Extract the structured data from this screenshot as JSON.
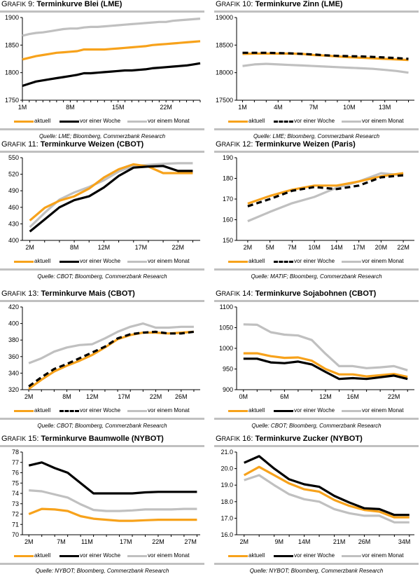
{
  "legend_labels": [
    "aktuell",
    "vor einer Woche",
    "vor einem Monat"
  ],
  "series_colors": {
    "aktuell": "#F7A21B",
    "vor einer Woche": "#000000",
    "vor einem Monat": "#C0C0C0"
  },
  "title_prefix_cap": "G",
  "title_prefix_rest": "RAFIK",
  "chart_data": [
    {
      "id": "g9",
      "number": "9",
      "title": "Terminkurve Blei (LME)",
      "type": "line",
      "xlabel": "",
      "ylabel": "",
      "ylim": [
        1750,
        1900
      ],
      "yticks": [
        1750,
        1800,
        1850,
        1900
      ],
      "x": [
        1,
        2,
        3,
        4,
        5,
        6,
        7,
        8,
        9,
        10,
        11,
        12,
        13,
        14,
        15,
        16,
        17,
        18,
        19,
        20,
        21,
        22,
        23,
        24,
        25,
        26,
        27
      ],
      "xticks": [
        {
          "x": 1,
          "label": "1M"
        },
        {
          "x": 8,
          "label": "8M"
        },
        {
          "x": 15,
          "label": "15M"
        },
        {
          "x": 22,
          "label": "22M"
        }
      ],
      "xlim": [
        1,
        27
      ],
      "dashed_week": false,
      "series": [
        {
          "name": "aktuell",
          "values": [
            1824,
            1827,
            1830,
            1832,
            1834,
            1836,
            1837,
            1838,
            1839,
            1842,
            1842,
            1842,
            1842,
            1843,
            1844,
            1845,
            1846,
            1847,
            1848,
            1850,
            1851,
            1852,
            1853,
            1854,
            1855,
            1856,
            1857
          ]
        },
        {
          "name": "vor einer Woche",
          "values": [
            1776,
            1780,
            1784,
            1786,
            1788,
            1790,
            1792,
            1794,
            1796,
            1799,
            1799,
            1800,
            1801,
            1802,
            1803,
            1804,
            1804,
            1805,
            1806,
            1808,
            1809,
            1810,
            1811,
            1812,
            1813,
            1815,
            1817
          ]
        },
        {
          "name": "vor einem Monat",
          "values": [
            1867,
            1870,
            1872,
            1873,
            1875,
            1877,
            1879,
            1880,
            1880,
            1882,
            1883,
            1883,
            1884,
            1885,
            1886,
            1887,
            1888,
            1889,
            1890,
            1891,
            1892,
            1892,
            1894,
            1895,
            1896,
            1897,
            1898
          ]
        }
      ],
      "source": "Quelle: LME; Bloomberg, Commerzbank Research",
      "grid": false,
      "legend_position": "bottom"
    },
    {
      "id": "g10",
      "number": "10",
      "title": "Terminkurve Zinn (LME)",
      "type": "line",
      "xlabel": "",
      "ylabel": "",
      "ylim": [
        17500,
        19000
      ],
      "yticks": [
        17500,
        18000,
        18500,
        19000
      ],
      "x": [
        1,
        2,
        3,
        4,
        5,
        6,
        7,
        8,
        9,
        10,
        11,
        12,
        13,
        14,
        15
      ],
      "xticks": [
        {
          "x": 1,
          "label": "1M"
        },
        {
          "x": 4,
          "label": "4M"
        },
        {
          "x": 7,
          "label": "7M"
        },
        {
          "x": 10,
          "label": "10M"
        },
        {
          "x": 13,
          "label": "13M"
        }
      ],
      "xlim": [
        0.5,
        15.5
      ],
      "dashed_week": true,
      "series": [
        {
          "name": "aktuell",
          "values": [
            18340,
            18345,
            18345,
            18345,
            18345,
            18340,
            18320,
            18310,
            18295,
            18280,
            18270,
            18260,
            18250,
            18240,
            18230
          ]
        },
        {
          "name": "vor einer Woche",
          "values": [
            18360,
            18360,
            18360,
            18355,
            18350,
            18340,
            18330,
            18315,
            18305,
            18300,
            18295,
            18285,
            18275,
            18265,
            18250
          ]
        },
        {
          "name": "vor einem Monat",
          "values": [
            18120,
            18150,
            18160,
            18150,
            18140,
            18130,
            18120,
            18110,
            18100,
            18090,
            18080,
            18070,
            18050,
            18030,
            18000
          ]
        }
      ],
      "source": "Quelle: LME; Bloomberg, Commerzbank Research",
      "grid": false,
      "legend_position": "bottom"
    },
    {
      "id": "g11",
      "number": "11",
      "title": "Terminkurve Weizen (CBOT)",
      "type": "line",
      "xlabel": "",
      "ylabel": "",
      "ylim": [
        400,
        550
      ],
      "yticks": [
        400,
        430,
        460,
        490,
        520,
        550
      ],
      "x": [
        2,
        4,
        6,
        8,
        10,
        12,
        14,
        16,
        18,
        20,
        22,
        24
      ],
      "xticks": [
        {
          "x": 2,
          "label": "2M"
        },
        {
          "x": 8,
          "label": "8M"
        },
        {
          "x": 12,
          "label": "12M"
        },
        {
          "x": 17,
          "label": "17M"
        },
        {
          "x": 22,
          "label": "22M"
        }
      ],
      "xlim": [
        1,
        25
      ],
      "dashed_week": false,
      "series": [
        {
          "name": "aktuell",
          "values": [
            436,
            459,
            472,
            480,
            494,
            514,
            529,
            538,
            534,
            522,
            522,
            522
          ]
        },
        {
          "name": "vor einer Woche",
          "values": [
            416,
            438,
            460,
            473,
            480,
            496,
            517,
            532,
            534,
            535,
            526,
            526
          ]
        },
        {
          "name": "vor einem Monat",
          "values": [
            424,
            450,
            474,
            487,
            497,
            509,
            525,
            535,
            537,
            539,
            540,
            540
          ]
        }
      ],
      "source": "Quelle: CBOT; Bloomberg, Commerzbank Research",
      "grid": false,
      "legend_position": "bottom"
    },
    {
      "id": "g12",
      "number": "12",
      "title": "Terminkurve Weizen (Paris)",
      "type": "line",
      "xlabel": "",
      "ylabel": "",
      "ylim": [
        150,
        190
      ],
      "yticks": [
        150,
        160,
        170,
        180,
        190
      ],
      "x": [
        1,
        2,
        3,
        4,
        5,
        6,
        7,
        8
      ],
      "xticks": [
        {
          "x": 1,
          "label": "2M"
        },
        {
          "x": 2,
          "label": "5M"
        },
        {
          "x": 3,
          "label": "7M"
        },
        {
          "x": 4,
          "label": "10M"
        },
        {
          "x": 5,
          "label": "14M"
        },
        {
          "x": 6,
          "label": "17M"
        },
        {
          "x": 7,
          "label": "20M"
        },
        {
          "x": 8,
          "label": "22M"
        }
      ],
      "xlim": [
        0.5,
        8.5
      ],
      "dashed_week": true,
      "series": [
        {
          "name": "aktuell",
          "values": [
            167.8,
            171.5,
            174.5,
            176.5,
            176.5,
            178.5,
            181.0,
            182.5
          ]
        },
        {
          "name": "vor einer Woche",
          "values": [
            166.5,
            170.0,
            174.0,
            175.8,
            174.8,
            176.5,
            180.5,
            181.5
          ]
        },
        {
          "name": "vor einem Monat",
          "values": [
            159.3,
            163.8,
            168.0,
            171.0,
            175.5,
            178.5,
            182.5,
            181.5
          ]
        }
      ],
      "source": "Quelle: MATIF; Bloomberg, Commerzbank Research",
      "grid": false,
      "legend_position": "bottom"
    },
    {
      "id": "g13",
      "number": "13",
      "title": "Terminkurve Mais (CBOT)",
      "type": "line",
      "xlabel": "",
      "ylabel": "",
      "ylim": [
        320,
        420
      ],
      "yticks": [
        320,
        340,
        360,
        380,
        400,
        420
      ],
      "x": [
        2,
        4,
        6,
        8,
        10,
        12,
        14,
        16,
        18,
        20,
        22,
        24,
        26,
        28
      ],
      "xticks": [
        {
          "x": 2,
          "label": "2M"
        },
        {
          "x": 8,
          "label": "8M"
        },
        {
          "x": 12,
          "label": "12M"
        },
        {
          "x": 17,
          "label": "17M"
        },
        {
          "x": 22,
          "label": "22M"
        },
        {
          "x": 26,
          "label": "26M"
        }
      ],
      "xlim": [
        1,
        29
      ],
      "dashed_week": true,
      "series": [
        {
          "name": "aktuell",
          "values": [
            321,
            332,
            342,
            349,
            355,
            362,
            371,
            381,
            386,
            389,
            389,
            388,
            389,
            390
          ]
        },
        {
          "name": "vor einer Woche",
          "values": [
            324,
            335,
            345,
            351,
            358,
            365,
            372,
            382,
            387,
            389,
            390,
            388,
            388,
            390
          ]
        },
        {
          "name": "vor einem Monat",
          "values": [
            352,
            358,
            366,
            371,
            374,
            375,
            382,
            390,
            396,
            400,
            395,
            395,
            396,
            396
          ]
        }
      ],
      "source": "Quelle: CBOT; Bloomberg, Commerzbank Research",
      "grid": false,
      "legend_position": "bottom"
    },
    {
      "id": "g14",
      "number": "14",
      "title": "Terminkurve Sojabohnen (CBOT)",
      "type": "line",
      "xlabel": "",
      "ylabel": "",
      "ylim": [
        900,
        1100
      ],
      "yticks": [
        900,
        950,
        1000,
        1050,
        1100
      ],
      "x": [
        0,
        2,
        4,
        6,
        8,
        10,
        12,
        14,
        16,
        18,
        20,
        22,
        24
      ],
      "xticks": [
        {
          "x": 0,
          "label": "0M"
        },
        {
          "x": 6,
          "label": "6M"
        },
        {
          "x": 12,
          "label": "12M"
        },
        {
          "x": 16,
          "label": "16M"
        },
        {
          "x": 22,
          "label": "22M"
        }
      ],
      "xlim": [
        -1,
        25
      ],
      "dashed_week": false,
      "series": [
        {
          "name": "aktuell",
          "values": [
            988,
            988,
            981,
            977,
            978,
            970,
            950,
            937,
            937,
            932,
            935,
            938,
            931
          ]
        },
        {
          "name": "vor einer Woche",
          "values": [
            975,
            975,
            966,
            964,
            968,
            961,
            943,
            926,
            928,
            926,
            930,
            934,
            926
          ]
        },
        {
          "name": "vor einem Monat",
          "values": [
            1058,
            1057,
            1039,
            1033,
            1031,
            1020,
            987,
            957,
            957,
            952,
            954,
            957,
            947
          ]
        }
      ],
      "source": "Quelle: CBOT; Bloomberg, Commerzbank Research",
      "grid": false,
      "legend_position": "bottom"
    },
    {
      "id": "g15",
      "number": "15",
      "title": "Terminkurve Baumwolle (NYBOT)",
      "type": "line",
      "xlabel": "",
      "ylabel": "",
      "ylim": [
        70,
        78
      ],
      "yticks": [
        70,
        71,
        72,
        73,
        74,
        75,
        76,
        77,
        78
      ],
      "x": [
        2,
        4,
        6,
        8,
        10,
        12,
        14,
        16,
        18,
        20,
        22,
        24,
        26,
        28
      ],
      "xticks": [
        {
          "x": 2,
          "label": "2M"
        },
        {
          "x": 7,
          "label": "7M"
        },
        {
          "x": 11,
          "label": "11M"
        },
        {
          "x": 17,
          "label": "17M"
        },
        {
          "x": 22,
          "label": "22M"
        },
        {
          "x": 27,
          "label": "27M"
        }
      ],
      "xlim": [
        1,
        28.5
      ],
      "dashed_week": false,
      "series": [
        {
          "name": "aktuell",
          "values": [
            72.0,
            72.5,
            72.45,
            72.3,
            71.8,
            71.55,
            71.45,
            71.35,
            71.35,
            71.4,
            71.45,
            71.45,
            71.45,
            71.45
          ]
        },
        {
          "name": "vor einer Woche",
          "values": [
            76.7,
            77.0,
            76.45,
            76.0,
            75.0,
            74.0,
            74.0,
            74.0,
            74.0,
            74.1,
            74.15,
            74.15,
            74.15,
            74.15
          ]
        },
        {
          "name": "vor einem Monat",
          "values": [
            74.3,
            74.2,
            73.9,
            73.6,
            72.95,
            72.4,
            72.3,
            72.3,
            72.35,
            72.45,
            72.45,
            72.45,
            72.5,
            72.5
          ]
        }
      ],
      "source": "Quelle: NYBOT; Bloomberg, Commerzbank Research",
      "grid": false,
      "legend_position": "bottom"
    },
    {
      "id": "g16",
      "number": "16",
      "title": "Terminkurve Zucker (NYBOT)",
      "type": "line",
      "xlabel": "",
      "ylabel": "",
      "ylim": [
        16.0,
        21.0
      ],
      "yticks": [
        "16.0",
        "17.0",
        "18.0",
        "19.0",
        "20.0",
        "21.0"
      ],
      "x": [
        2,
        5,
        8,
        11,
        14,
        17,
        20,
        23,
        26,
        29,
        32,
        35
      ],
      "xticks": [
        {
          "x": 2,
          "label": "2M"
        },
        {
          "x": 9,
          "label": "9M"
        },
        {
          "x": 14,
          "label": "14M"
        },
        {
          "x": 21,
          "label": "21M"
        },
        {
          "x": 26,
          "label": "26M"
        },
        {
          "x": 34,
          "label": "34M"
        }
      ],
      "xlim": [
        0.5,
        36
      ],
      "dashed_week": false,
      "series": [
        {
          "name": "aktuell",
          "values": [
            19.6,
            20.1,
            19.6,
            19.1,
            18.75,
            18.6,
            18.1,
            17.75,
            17.5,
            17.4,
            17.05,
            17.05
          ]
        },
        {
          "name": "vor einer Woche",
          "values": [
            20.35,
            20.75,
            20.0,
            19.35,
            19.05,
            18.9,
            18.35,
            17.95,
            17.6,
            17.55,
            17.2,
            17.2
          ]
        },
        {
          "name": "vor einem Monat",
          "values": [
            19.3,
            19.6,
            19.0,
            18.45,
            18.15,
            18.0,
            17.55,
            17.3,
            17.15,
            17.15,
            16.75,
            16.75
          ]
        }
      ],
      "source": "Quelle: NYBOT; Bloomberg, Commerzbank Research",
      "grid": false,
      "legend_position": "bottom"
    }
  ]
}
